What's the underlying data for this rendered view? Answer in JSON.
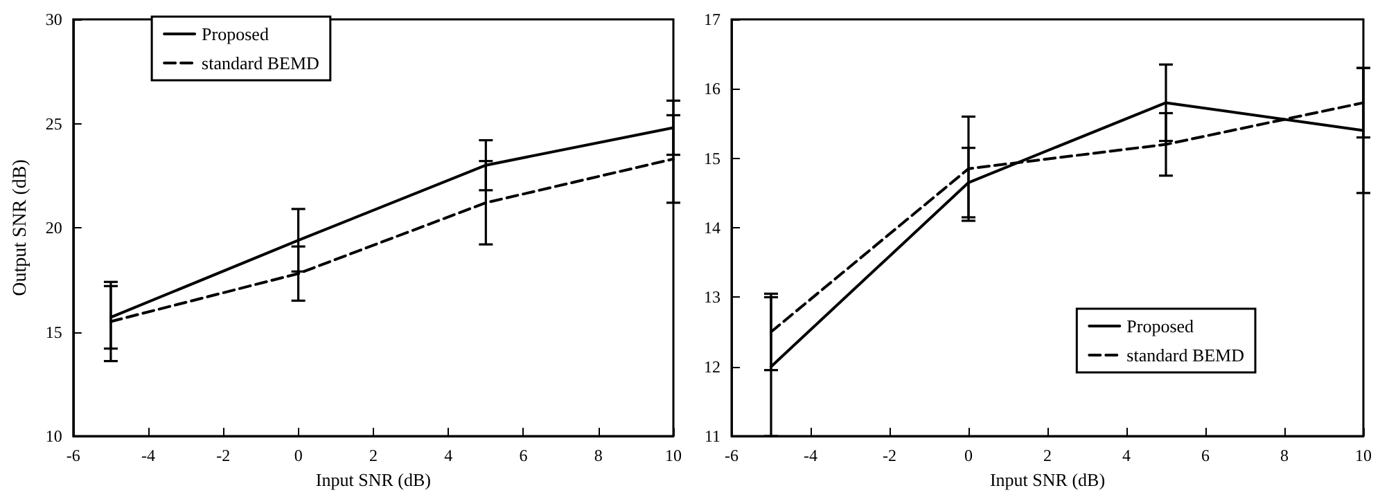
{
  "chart_data": [
    {
      "type": "line",
      "xlabel": "Input SNR (dB)",
      "ylabel": "Output SNR (dB)",
      "x": [
        -5,
        0,
        5,
        10
      ],
      "xlim": [
        -6,
        10
      ],
      "xticks": [
        -6,
        -4,
        -2,
        0,
        2,
        4,
        6,
        8,
        10
      ],
      "ylim": [
        10,
        30
      ],
      "yticks": [
        10,
        15,
        20,
        25,
        30
      ],
      "grid": false,
      "legend": "top left",
      "marker": "none",
      "series": [
        {
          "name": "Proposed",
          "color": "#000000",
          "line_style": "solid",
          "values": [
            15.7,
            19.4,
            23.0,
            24.8
          ],
          "errors": [
            1.5,
            1.5,
            1.2,
            1.3
          ]
        },
        {
          "name": "standard BEMD",
          "color": "#000000",
          "line_style": "dashed",
          "values": [
            15.5,
            17.8,
            21.2,
            23.3
          ],
          "errors": [
            1.9,
            1.3,
            2.0,
            2.1
          ]
        }
      ]
    },
    {
      "type": "line",
      "xlabel": "Input SNR (dB)",
      "x": [
        -5,
        0,
        5,
        10
      ],
      "xlim": [
        -6,
        10
      ],
      "xticks": [
        -6,
        -4,
        -2,
        0,
        2,
        4,
        6,
        8,
        10
      ],
      "ylim": [
        11,
        17
      ],
      "yticks": [
        11,
        12,
        13,
        14,
        15,
        16,
        17
      ],
      "grid": false,
      "legend": "bottom right",
      "marker": "none",
      "series": [
        {
          "name": "Proposed",
          "color": "#000000",
          "line_style": "solid",
          "values": [
            12.0,
            14.65,
            15.8,
            15.4
          ],
          "errors": [
            1.0,
            0.5,
            0.55,
            0.9
          ]
        },
        {
          "name": "standard BEMD",
          "color": "#000000",
          "line_style": "dashed",
          "values": [
            12.5,
            14.85,
            15.2,
            15.8
          ],
          "errors": [
            0.55,
            0.75,
            0.45,
            0.5
          ]
        }
      ]
    }
  ]
}
